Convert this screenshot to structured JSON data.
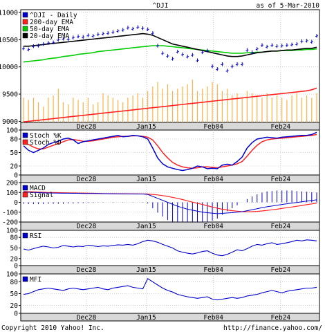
{
  "header": {
    "symbol": "^DJI",
    "as_of": "as of  5-Mar-2010"
  },
  "footer": {
    "copyright": "Copyright 2010 Yahoo! Inc.",
    "url": "http://finance.yahoo.com/"
  },
  "date_labels": [
    "Dec28",
    "Jan15",
    "Feb04",
    "Feb24"
  ],
  "colors": {
    "price_bars": "#0000cc",
    "ema200": "#ff2020",
    "ema50": "#00cc00",
    "ema20": "#000000",
    "volume": "#ffb040",
    "stoch_k": "#0000cc",
    "stoch_d": "#ff2020",
    "macd": "#0000cc",
    "signal": "#ff2020",
    "rsi": "#0000cc",
    "mfi": "#0000cc",
    "panel_bg": "#ffffff",
    "strip_bg": "#d8d8d8",
    "grid": "#b0b0b0"
  },
  "chart_data": [
    {
      "type": "line",
      "title": "^DJI - Daily",
      "legend": [
        "^DJI - Daily",
        "200-day EMA",
        "50-day EMA",
        "20-day EMA"
      ],
      "legend_placement": "top-left",
      "yticks": [
        9000,
        9500,
        10000,
        10500,
        11000
      ],
      "ylim": [
        8980,
        11050
      ],
      "grid": true,
      "x_labels": [
        "Dec28",
        "Jan15",
        "Feb04",
        "Feb24"
      ],
      "close": [
        10340,
        10320,
        10380,
        10390,
        10420,
        10440,
        10450,
        10500,
        10520,
        10510,
        10540,
        10560,
        10550,
        10580,
        10570,
        10600,
        10610,
        10620,
        10640,
        10660,
        10680,
        10720,
        10700,
        10730,
        10710,
        10690,
        10620,
        10390,
        10250,
        10200,
        10150,
        10280,
        10230,
        10190,
        10220,
        10120,
        10270,
        10300,
        10010,
        9960,
        10050,
        9930,
        10010,
        10050,
        10050,
        10310,
        10270,
        10330,
        10400,
        10370,
        10400,
        10380,
        10390,
        10400,
        10410,
        10420,
        10470,
        10480,
        10460,
        10570
      ],
      "ema200": [
        8990,
        9000,
        9010,
        9020,
        9030,
        9040,
        9050,
        9060,
        9070,
        9080,
        9090,
        9100,
        9110,
        9120,
        9130,
        9140,
        9150,
        9160,
        9170,
        9180,
        9190,
        9200,
        9210,
        9220,
        9230,
        9240,
        9250,
        9260,
        9270,
        9280,
        9290,
        9300,
        9310,
        9320,
        9330,
        9340,
        9350,
        9360,
        9370,
        9380,
        9390,
        9400,
        9410,
        9420,
        9430,
        9440,
        9450,
        9460,
        9470,
        9480,
        9490,
        9500,
        9510,
        9520,
        9530,
        9540,
        9550,
        9560,
        9580,
        9610
      ],
      "ema50": [
        10090,
        10100,
        10110,
        10120,
        10130,
        10150,
        10160,
        10170,
        10190,
        10200,
        10210,
        10230,
        10240,
        10250,
        10260,
        10280,
        10290,
        10300,
        10310,
        10320,
        10330,
        10340,
        10350,
        10360,
        10370,
        10380,
        10390,
        10390,
        10390,
        10380,
        10370,
        10360,
        10350,
        10340,
        10330,
        10320,
        10310,
        10300,
        10290,
        10280,
        10270,
        10260,
        10250,
        10250,
        10250,
        10260,
        10260,
        10270,
        10270,
        10280,
        10290,
        10290,
        10300,
        10300,
        10300,
        10310,
        10310,
        10320,
        10320,
        10330
      ],
      "ema20": [
        10380,
        10380,
        10390,
        10400,
        10410,
        10420,
        10430,
        10440,
        10450,
        10460,
        10470,
        10480,
        10490,
        10500,
        10510,
        10520,
        10530,
        10540,
        10550,
        10560,
        10570,
        10580,
        10590,
        10600,
        10610,
        10600,
        10580,
        10540,
        10500,
        10460,
        10420,
        10400,
        10380,
        10360,
        10340,
        10320,
        10300,
        10280,
        10260,
        10240,
        10220,
        10200,
        10190,
        10190,
        10200,
        10220,
        10240,
        10260,
        10270,
        10280,
        10290,
        10290,
        10300,
        10310,
        10310,
        10320,
        10330,
        10340,
        10340,
        10360
      ],
      "volume": [
        0.55,
        0.5,
        0.55,
        0.45,
        0.35,
        0.55,
        0.6,
        0.75,
        0.45,
        0.4,
        0.55,
        0.5,
        0.45,
        0.55,
        0.4,
        0.45,
        0.65,
        0.6,
        0.55,
        0.5,
        0.45,
        0.55,
        0.6,
        0.65,
        0.55,
        0.7,
        0.8,
        0.9,
        0.75,
        0.85,
        0.7,
        0.75,
        0.8,
        0.85,
        0.95,
        0.7,
        0.75,
        0.8,
        0.9,
        0.85,
        0.7,
        0.75,
        0.6,
        0.65,
        0.55,
        0.7,
        0.65,
        0.6,
        0.55,
        0.65,
        0.55,
        0.6,
        0.55,
        0.5,
        0.6,
        0.65,
        0.55,
        0.6,
        0.55,
        0.65
      ]
    },
    {
      "type": "line",
      "legend": [
        "Stoch %K",
        "Stoch %D"
      ],
      "yticks": [
        0,
        20,
        50,
        80,
        100
      ],
      "ylim": [
        0,
        100
      ],
      "stoch_k": [
        65,
        55,
        50,
        55,
        60,
        68,
        72,
        75,
        80,
        82,
        78,
        70,
        74,
        76,
        78,
        80,
        82,
        84,
        86,
        88,
        85,
        86,
        88,
        87,
        85,
        80,
        60,
        38,
        25,
        18,
        15,
        12,
        10,
        12,
        15,
        20,
        18,
        14,
        15,
        14,
        22,
        24,
        22,
        30,
        40,
        60,
        72,
        80,
        82,
        84,
        83,
        82,
        84,
        85,
        86,
        87,
        88,
        88,
        90,
        95
      ],
      "stoch_d": [
        70,
        68,
        62,
        58,
        58,
        62,
        66,
        70,
        74,
        78,
        79,
        77,
        75,
        75,
        76,
        78,
        80,
        82,
        84,
        85,
        86,
        86,
        87,
        87,
        86,
        84,
        78,
        65,
        50,
        38,
        28,
        22,
        18,
        16,
        15,
        16,
        18,
        18,
        17,
        16,
        18,
        20,
        22,
        25,
        30,
        42,
        55,
        66,
        74,
        78,
        80,
        81,
        82,
        83,
        84,
        85,
        86,
        87,
        88,
        90
      ]
    },
    {
      "type": "line",
      "legend": [
        "MACD",
        "Signal"
      ],
      "yticks": [
        -200,
        -100,
        0,
        100,
        200
      ],
      "ylim": [
        -200,
        200
      ],
      "macd": [
        105,
        102,
        100,
        98,
        96,
        95,
        94,
        93,
        92,
        92,
        91,
        91,
        90,
        90,
        89,
        89,
        88,
        88,
        87,
        87,
        86,
        86,
        85,
        85,
        84,
        80,
        60,
        40,
        20,
        0,
        -20,
        -40,
        -55,
        -70,
        -80,
        -90,
        -100,
        -105,
        -110,
        -115,
        -112,
        -108,
        -105,
        -100,
        -95,
        -85,
        -75,
        -65,
        -55,
        -45,
        -38,
        -30,
        -22,
        -15,
        -8,
        -2,
        5,
        12,
        18,
        25
      ],
      "signal": [
        110,
        108,
        106,
        104,
        102,
        100,
        99,
        98,
        97,
        96,
        95,
        94,
        93,
        92,
        91,
        90,
        89,
        88,
        88,
        87,
        87,
        86,
        86,
        85,
        85,
        84,
        80,
        75,
        68,
        60,
        50,
        40,
        28,
        15,
        2,
        -10,
        -22,
        -35,
        -48,
        -60,
        -70,
        -78,
        -85,
        -90,
        -95,
        -96,
        -95,
        -92,
        -88,
        -82,
        -76,
        -70,
        -62,
        -55,
        -48,
        -40,
        -32,
        -24,
        -16,
        -8
      ]
    },
    {
      "type": "line",
      "legend": [
        "RSI"
      ],
      "yticks": [
        0,
        20,
        50,
        80,
        100
      ],
      "ylim": [
        0,
        100
      ],
      "rsi": [
        47,
        44,
        48,
        52,
        55,
        53,
        50,
        52,
        57,
        55,
        53,
        55,
        54,
        58,
        56,
        54,
        56,
        55,
        57,
        59,
        58,
        60,
        58,
        62,
        68,
        72,
        70,
        66,
        60,
        55,
        50,
        42,
        38,
        35,
        33,
        36,
        40,
        42,
        35,
        30,
        28,
        32,
        38,
        45,
        42,
        48,
        55,
        60,
        58,
        62,
        65,
        60,
        62,
        65,
        68,
        72,
        70,
        73,
        72,
        70
      ],
      "reference_lines": [
        30,
        70
      ]
    },
    {
      "type": "line",
      "legend": [
        "MFI"
      ],
      "yticks": [
        0,
        20,
        50,
        80,
        100
      ],
      "ylim": [
        0,
        100
      ],
      "mfi": [
        48,
        50,
        55,
        60,
        62,
        64,
        62,
        60,
        58,
        62,
        64,
        62,
        60,
        62,
        64,
        66,
        62,
        60,
        64,
        66,
        68,
        70,
        66,
        64,
        62,
        88,
        80,
        72,
        64,
        58,
        54,
        48,
        45,
        42,
        40,
        38,
        40,
        42,
        36,
        34,
        36,
        38,
        40,
        38,
        40,
        44,
        46,
        48,
        52,
        55,
        58,
        55,
        52,
        56,
        58,
        60,
        62,
        64,
        64,
        66
      ],
      "reference_lines": [
        20,
        80
      ]
    }
  ]
}
